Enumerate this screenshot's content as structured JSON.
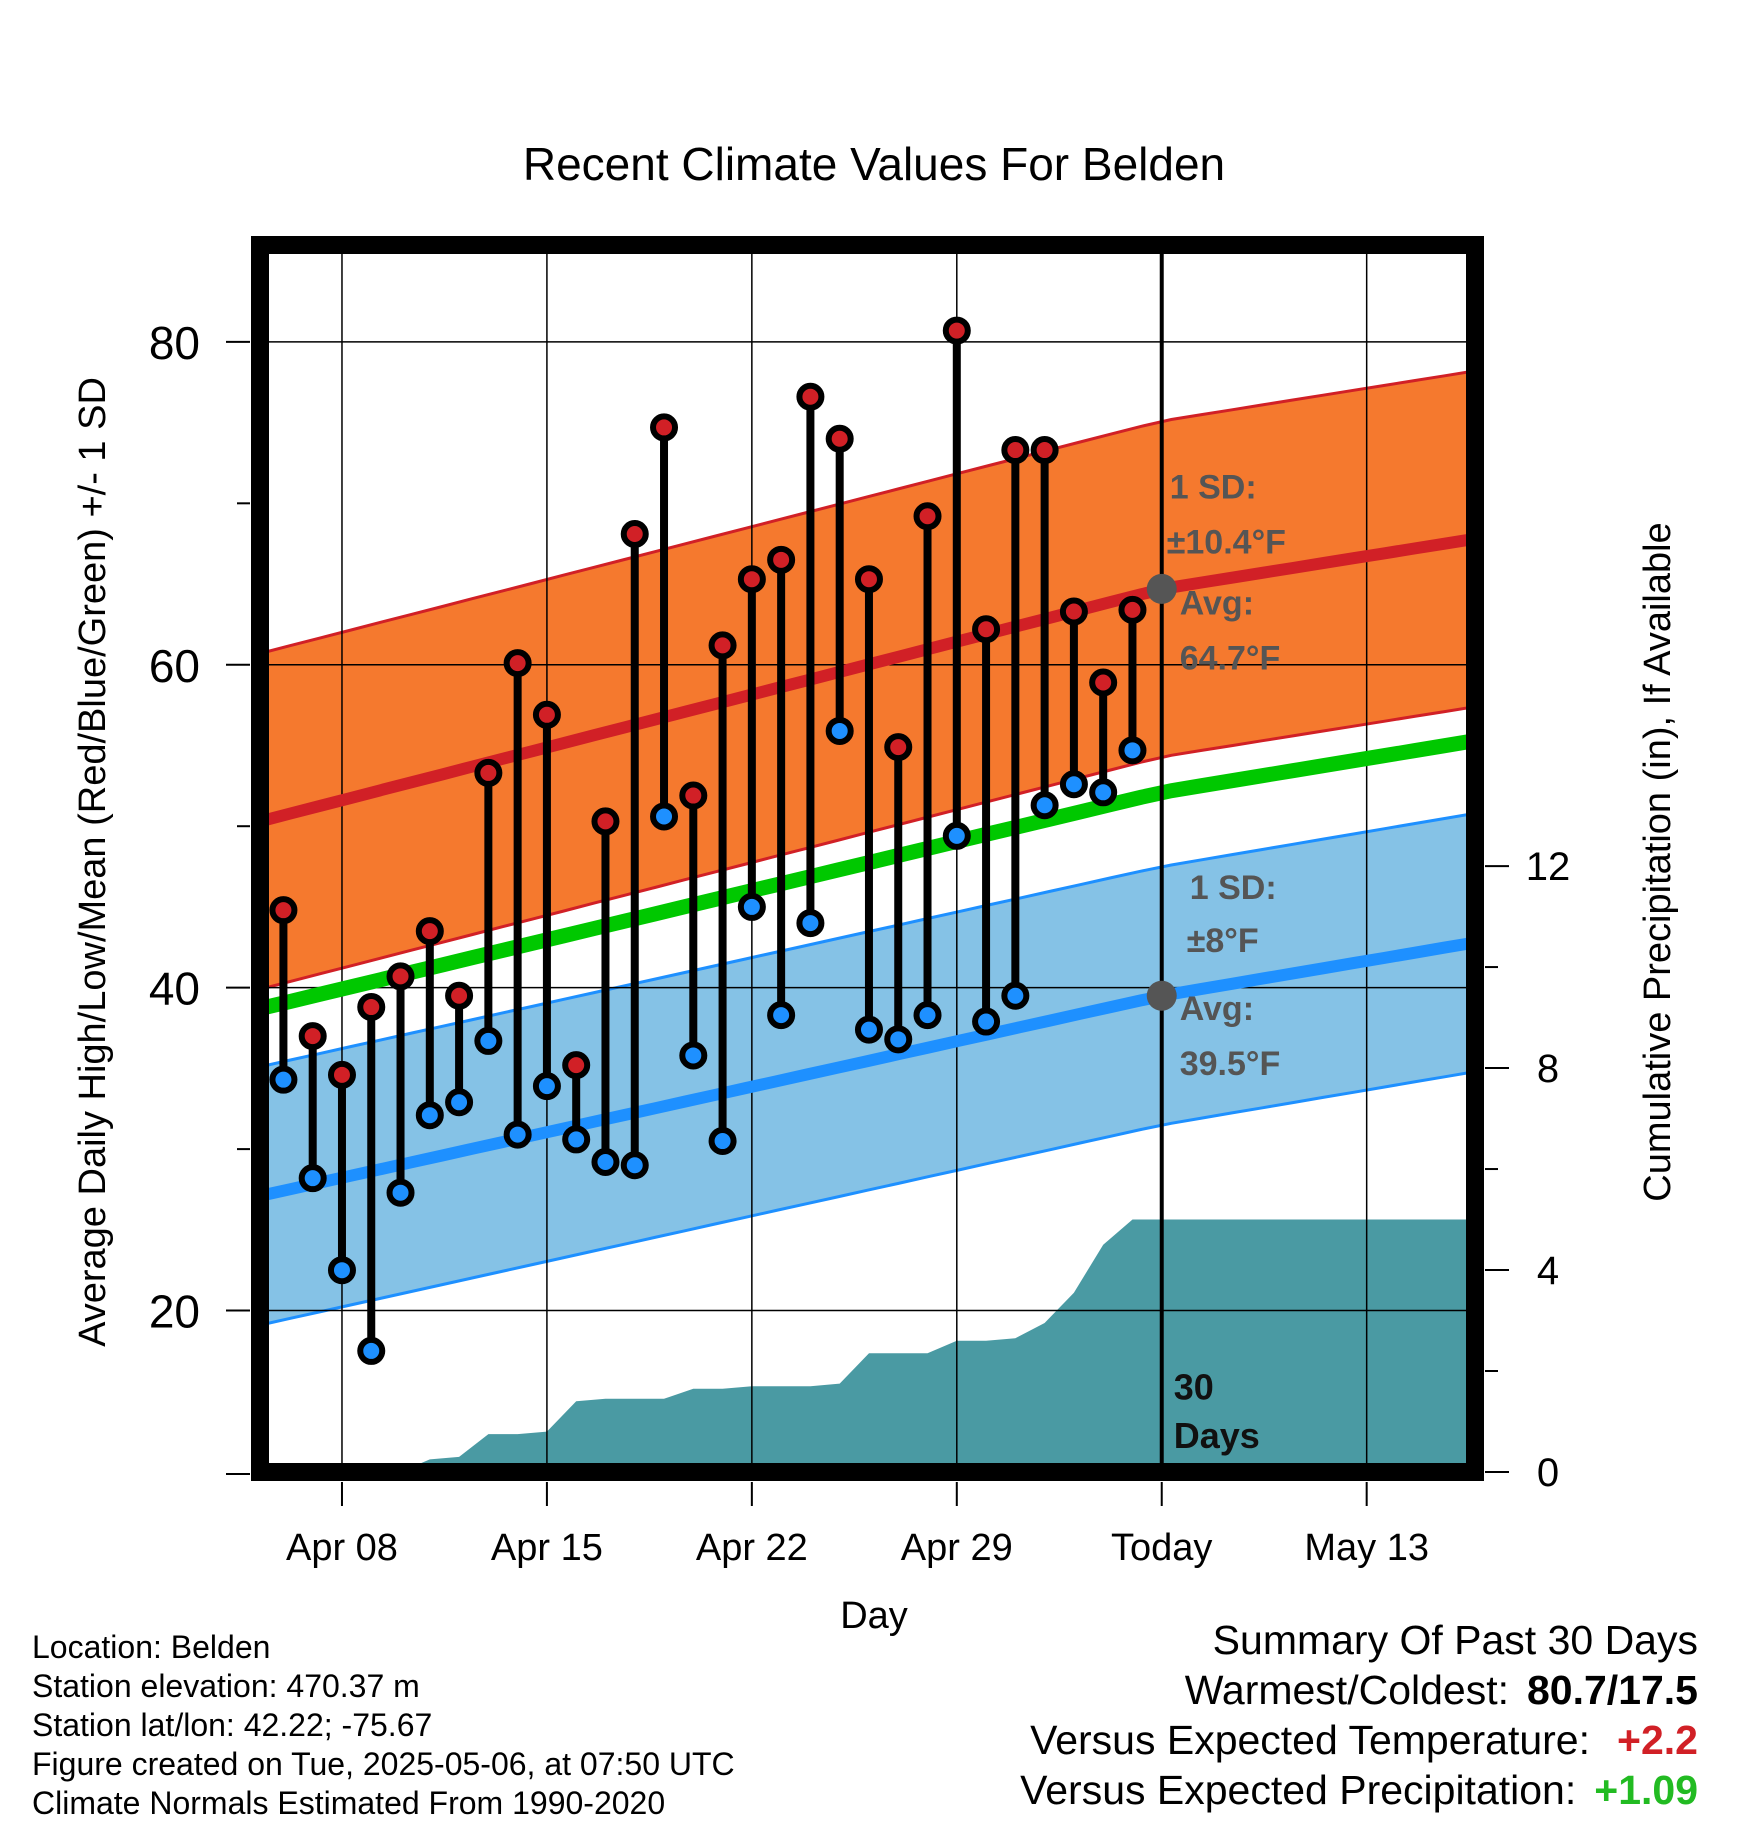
{
  "chart_data": {
    "type": "line",
    "title": "Recent Climate Values For Belden",
    "xlabel": "Day",
    "ylabel_left": "Average Daily High/Low/Mean (Red/Blue/Green) +/- 1 SD",
    "ylabel_right": "Cumulative Precipitation (in), If Available",
    "x_ticks": [
      {
        "day": 8,
        "label": "Apr 08"
      },
      {
        "day": 15,
        "label": "Apr 15"
      },
      {
        "day": 22,
        "label": "Apr 22"
      },
      {
        "day": 29,
        "label": "Apr 29"
      },
      {
        "day": 36,
        "label": "Today"
      },
      {
        "day": 43,
        "label": "May 13"
      }
    ],
    "xlim": [
      "Apr 05",
      "May 16"
    ],
    "ylim_left": [
      10,
      86
    ],
    "y_ticks_left": [
      20,
      40,
      60,
      80
    ],
    "ylim_right": [
      0,
      24.3
    ],
    "y_ticks_right": [
      0,
      4,
      8,
      12
    ],
    "grid": true,
    "days": [
      "Apr 06",
      "Apr 07",
      "Apr 08",
      "Apr 09",
      "Apr 10",
      "Apr 11",
      "Apr 12",
      "Apr 13",
      "Apr 14",
      "Apr 15",
      "Apr 16",
      "Apr 17",
      "Apr 18",
      "Apr 19",
      "Apr 20",
      "Apr 21",
      "Apr 22",
      "Apr 23",
      "Apr 24",
      "Apr 25",
      "Apr 26",
      "Apr 27",
      "Apr 28",
      "Apr 29",
      "Apr 30",
      "May 01",
      "May 02",
      "May 03",
      "May 04",
      "May 05"
    ],
    "highs": [
      44.8,
      37.0,
      34.6,
      38.8,
      40.7,
      43.5,
      39.5,
      53.3,
      60.1,
      56.9,
      35.2,
      50.3,
      68.1,
      74.7,
      51.9,
      61.2,
      65.3,
      66.5,
      76.6,
      74.0,
      65.3,
      54.9,
      69.2,
      80.7,
      62.2,
      73.3,
      73.3,
      63.3,
      58.9,
      63.4
    ],
    "lows": [
      34.3,
      28.2,
      22.5,
      17.5,
      27.3,
      32.1,
      32.9,
      36.7,
      30.9,
      33.9,
      30.6,
      29.2,
      29.0,
      50.6,
      35.8,
      30.5,
      45.0,
      38.3,
      44.0,
      55.9,
      37.4,
      36.8,
      38.3,
      49.4,
      37.9,
      39.5,
      51.3,
      52.6,
      52.1,
      54.7
    ],
    "normal_high": {
      "start": 50.3,
      "today": 64.7,
      "end": 67.8,
      "sd": 10.4
    },
    "normal_low": {
      "start": 27.1,
      "today": 39.5,
      "end": 42.8,
      "sd": 8
    },
    "normal_mean": {
      "start": 38.7,
      "today": 52.1,
      "end": 55.3
    },
    "precip_cumulative": [
      0,
      0,
      0,
      0,
      0,
      0.25,
      0.3,
      0.75,
      0.75,
      0.8,
      1.4,
      1.45,
      1.45,
      1.45,
      1.65,
      1.65,
      1.7,
      1.7,
      1.7,
      1.75,
      2.35,
      2.35,
      2.35,
      2.6,
      2.6,
      2.65,
      2.95,
      3.55,
      4.5,
      5.0,
      5.0
    ],
    "annotations": {
      "high_sd_label": "1 SD:",
      "high_sd_value": "±10.4°F",
      "high_avg_label": "Avg:",
      "high_avg_value": "64.7°F",
      "low_sd_label": "1 SD:",
      "low_sd_value": "±8°F",
      "low_avg_label": "Avg:",
      "low_avg_value": "39.5°F",
      "period_line1": "30",
      "period_line2": "Days"
    },
    "colors": {
      "high": "#d12026",
      "high_band": "#f5792e",
      "low": "#1e90ff",
      "low_band": "#85c2e6",
      "mean": "#00c800",
      "precip": "#4a9aa3",
      "annotation": "#555555"
    }
  },
  "footer": {
    "location": "Location: Belden",
    "elevation": "Station elevation: 470.37 m",
    "latlon": "Station lat/lon: 42.22; -75.67",
    "created": "Figure created on Tue, 2025-05-06, at 07:50 UTC",
    "normals": "Climate Normals Estimated From 1990-2020"
  },
  "summary": {
    "title": "Summary Of Past 30 Days",
    "warmest_coldest_label": "Warmest/Coldest:",
    "warmest_coldest_value": "80.7/17.5",
    "temp_label": "Versus Expected Temperature:",
    "temp_value": "+2.2",
    "temp_color": "#d12026",
    "precip_label": "Versus Expected Precipitation:",
    "precip_value": "+1.09",
    "precip_color": "#22bb22"
  }
}
